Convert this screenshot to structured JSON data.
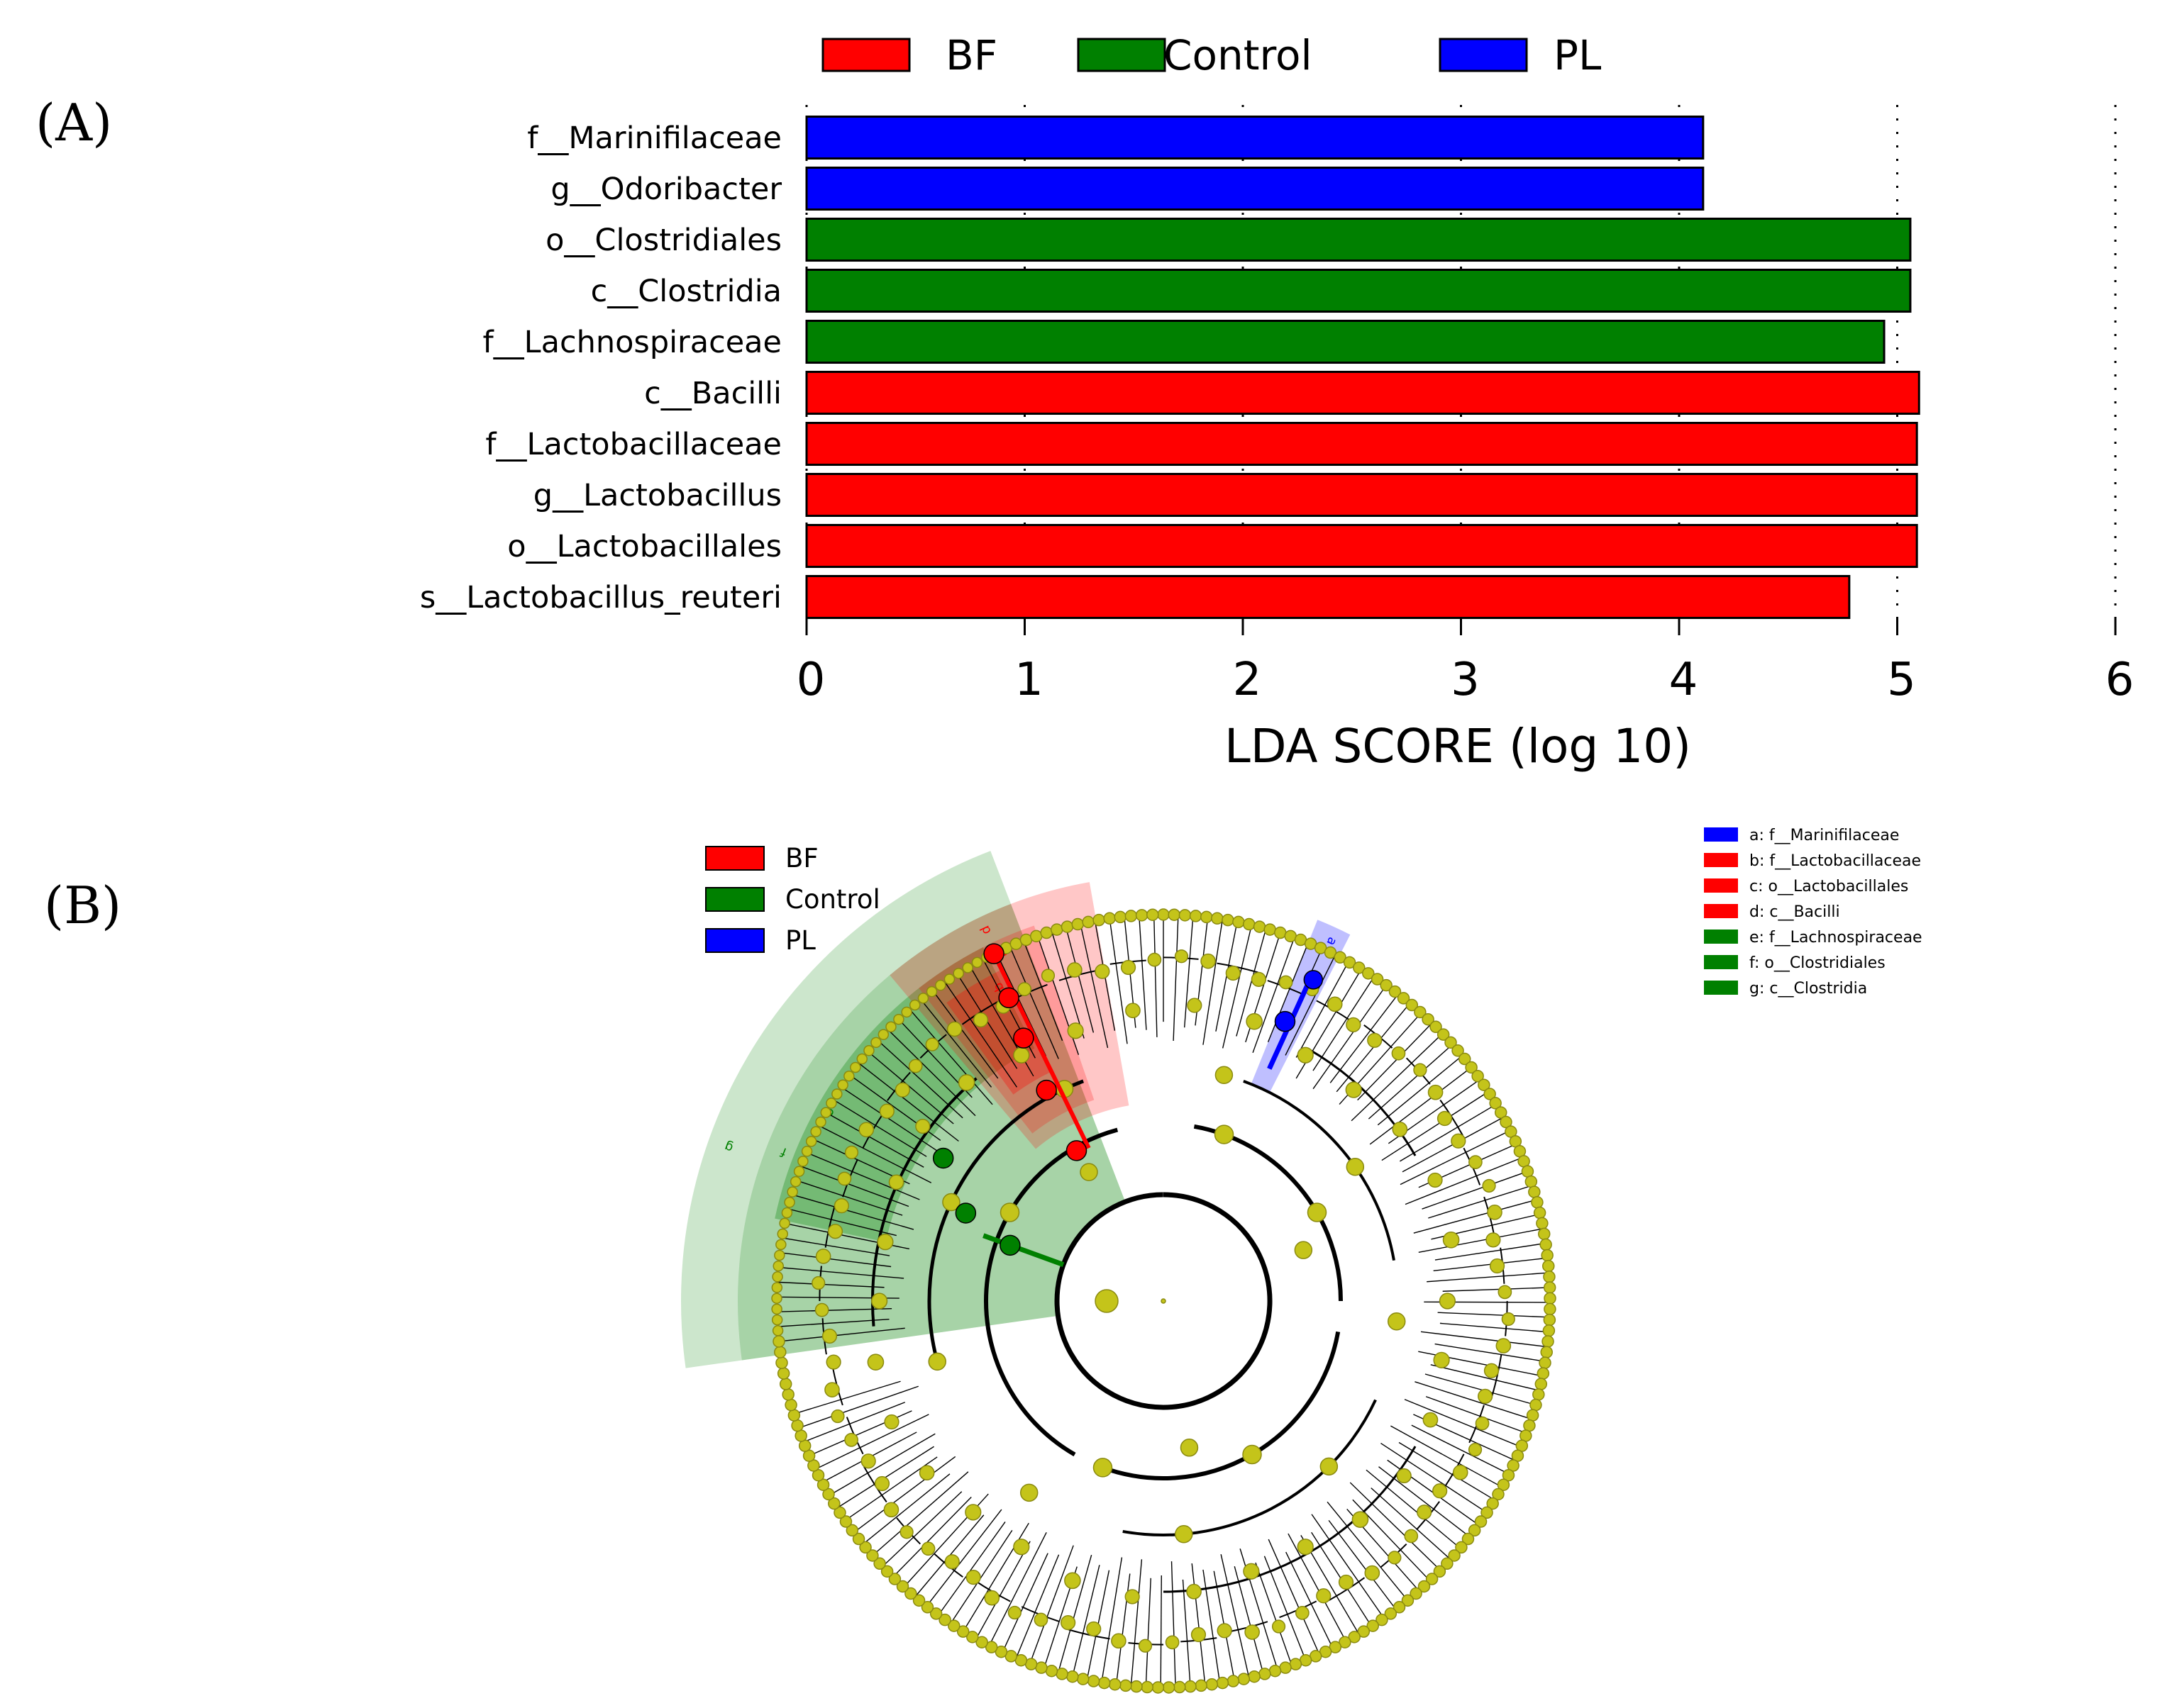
{
  "colors": {
    "BF": "#ff0000",
    "Control": "#008000",
    "PL": "#0000ff",
    "node": "#c4c41a",
    "node_stroke": "#8a8a10",
    "edge": "#000000"
  },
  "panel_a": {
    "label": "(A)",
    "legend": [
      {
        "name": "BF",
        "group": "BF"
      },
      {
        "name": "Control",
        "group": "Control"
      },
      {
        "name": "PL",
        "group": "PL"
      }
    ]
  },
  "panel_b": {
    "label": "(B)",
    "legend_groups": [
      {
        "name": "BF",
        "group": "BF"
      },
      {
        "name": "Control",
        "group": "Control"
      },
      {
        "name": "PL",
        "group": "PL"
      }
    ],
    "legend_clades": [
      {
        "text": "a: f__Marinifilaceae",
        "group": "PL"
      },
      {
        "text": "b: f__Lactobacillaceae",
        "group": "BF"
      },
      {
        "text": "c: o__Lactobacillales",
        "group": "BF"
      },
      {
        "text": "d: c__Bacilli",
        "group": "BF"
      },
      {
        "text": "e: f__Lachnospiraceae",
        "group": "Control"
      },
      {
        "text": "f: o__Clostridiales",
        "group": "Control"
      },
      {
        "text": "g: c__Clostridia",
        "group": "Control"
      }
    ],
    "clade_letters": [
      "a",
      "b",
      "c",
      "d",
      "e",
      "f",
      "g"
    ]
  },
  "chart_data": {
    "type": "bar",
    "orientation": "horizontal",
    "title": "",
    "xlabel": "LDA SCORE (log 10)",
    "ylabel": "",
    "xlim": [
      0,
      6
    ],
    "xticks": [
      0,
      1,
      2,
      3,
      4,
      5,
      6
    ],
    "grid": "vertical dotted",
    "legend_position": "top",
    "categories": [
      "f__Marinifilaceae",
      "g__Odoribacter",
      "o__Clostridiales",
      "c__Clostridia",
      "f__Lachnospiraceae",
      "c__Bacilli",
      "f__Lactobacillaceae",
      "g__Lactobacillus",
      "o__Lactobacillales",
      "s__Lactobacillus_reuteri"
    ],
    "values": [
      4.11,
      4.11,
      5.06,
      5.06,
      4.94,
      5.1,
      5.09,
      5.09,
      5.09,
      4.78
    ],
    "groups": [
      "PL",
      "PL",
      "Control",
      "Control",
      "Control",
      "BF",
      "BF",
      "BF",
      "BF",
      "BF"
    ]
  }
}
